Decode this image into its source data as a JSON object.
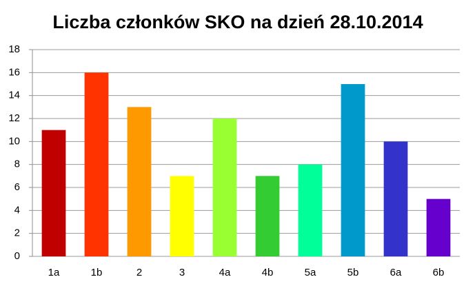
{
  "chart_data": {
    "type": "bar",
    "title": "Liczba członków SKO na dzień 28.10.2014",
    "categories": [
      "1a",
      "1b",
      "2",
      "3",
      "4a",
      "4b",
      "5a",
      "5b",
      "6a",
      "6b"
    ],
    "values": [
      11,
      16,
      13,
      7,
      12,
      7,
      8,
      15,
      10,
      5
    ],
    "colors": [
      "#c00000",
      "#ff3300",
      "#ff9900",
      "#ffff00",
      "#99ff33",
      "#33cc33",
      "#00ff99",
      "#0099cc",
      "#3333cc",
      "#6600cc"
    ],
    "ylim": [
      0,
      18
    ],
    "yticks": [
      0,
      2,
      4,
      6,
      8,
      10,
      12,
      14,
      16,
      18
    ],
    "grid": true
  }
}
